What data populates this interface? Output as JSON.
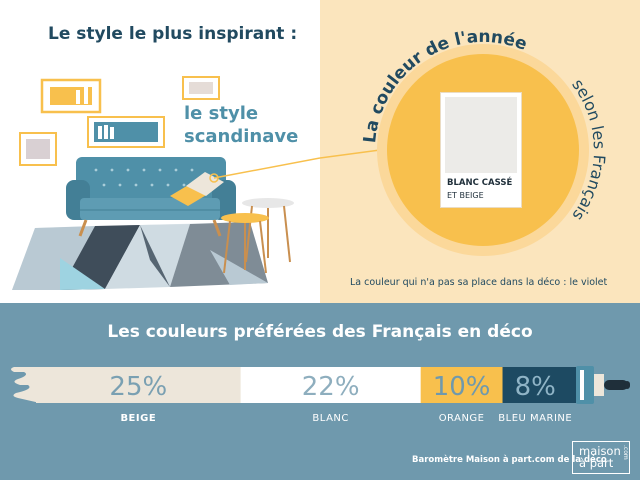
{
  "header": {
    "title": "Le style le plus inspirant :",
    "style_name_line1": "le style",
    "style_name_line2": "scandinave"
  },
  "color_of_year": {
    "circle_heading": "La couleur de l'année",
    "circle_subheading": "selon les Français",
    "swatch_title": "BLANC CASSÉ",
    "swatch_subtitle": "ET BEIGE",
    "swatch_color": "#ecebe8",
    "disliked_note": "La couleur qui n'a pas sa place dans la déco : le violet"
  },
  "colors": {
    "navy": "#214a60",
    "accent_yellow": "#f8c04d",
    "teal": "#4f90a8",
    "panel_peach": "#fbe5bd",
    "bottom_blue": "#6f99ad"
  },
  "chart_data": {
    "type": "bar",
    "title": "Les couleurs préférées des Français en déco",
    "categories": [
      "BEIGE",
      "BLANC",
      "ORANGE",
      "BLEU MARINE"
    ],
    "values": [
      25,
      22,
      10,
      8
    ],
    "value_labels": [
      "25%",
      "22%",
      "10%",
      "8%"
    ],
    "unit": "%",
    "segment_colors": [
      "#ede6da",
      "#ffffff",
      "#f8c04d",
      "#1d4a62"
    ],
    "value_text_colors": [
      "#7aa0b2",
      "#8eaebe",
      "#6f99ad",
      "#8fb4c6"
    ]
  },
  "footer": {
    "source": "Baromètre Maison à part.com de la déco",
    "logo_line1": "maison",
    "logo_line2": "à part",
    "logo_suffix": ".com"
  }
}
